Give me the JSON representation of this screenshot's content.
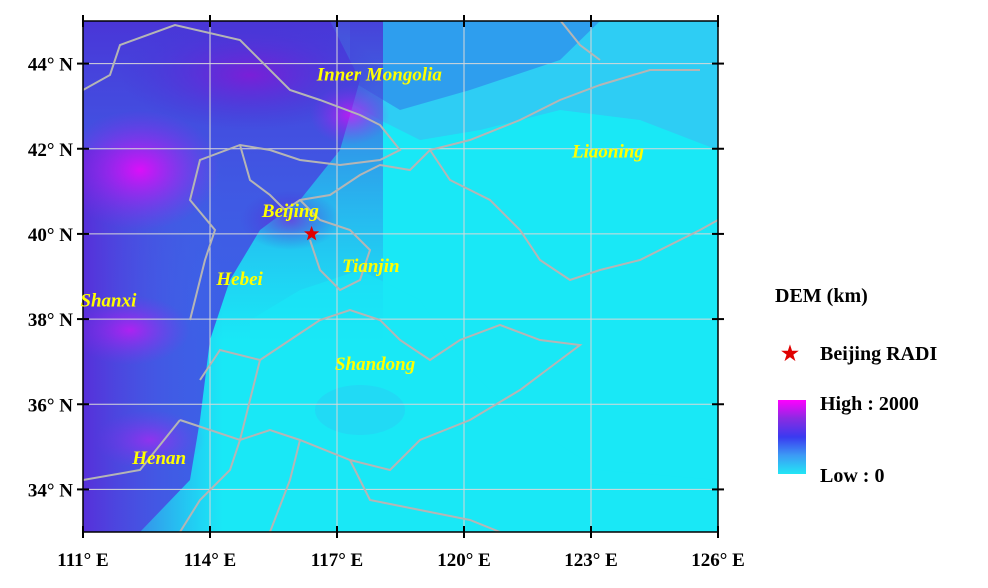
{
  "map": {
    "lon_ticks": [
      "111° E",
      "114° E",
      "117° E",
      "120° E",
      "123° E",
      "126° E"
    ],
    "lat_ticks": [
      "44° N",
      "42° N",
      "40° N",
      "38° N",
      "36° N",
      "34° N"
    ],
    "regions": [
      {
        "name": "Inner Mongolia",
        "lon": 118.0,
        "lat": 43.6
      },
      {
        "name": "Liaoning",
        "lon": 123.4,
        "lat": 41.8
      },
      {
        "name": "Beijing",
        "lon": 115.9,
        "lat": 40.4
      },
      {
        "name": "Hebei",
        "lon": 114.7,
        "lat": 38.8
      },
      {
        "name": "Tianjin",
        "lon": 117.8,
        "lat": 39.1
      },
      {
        "name": "Shanxi",
        "lon": 111.6,
        "lat": 38.3
      },
      {
        "name": "Shandong",
        "lon": 117.9,
        "lat": 36.8
      },
      {
        "name": "Henan",
        "lon": 112.8,
        "lat": 34.6
      }
    ],
    "site": {
      "name": "Beijing RADI",
      "lon": 116.4,
      "lat": 40.0
    },
    "extent": {
      "lon": [
        111,
        126
      ],
      "lat": [
        33,
        45
      ]
    }
  },
  "legend": {
    "title": "DEM (km)",
    "site_label": "Beijing RADI",
    "high_label": "High : 2000",
    "low_label": "Low : 0",
    "ramp_colors": [
      "#ff00ff",
      "#8a2be2",
      "#3a3af0",
      "#3c9bf5",
      "#22e6f5"
    ],
    "star_color": "#e00000",
    "region_label_color": "#ffff00"
  }
}
